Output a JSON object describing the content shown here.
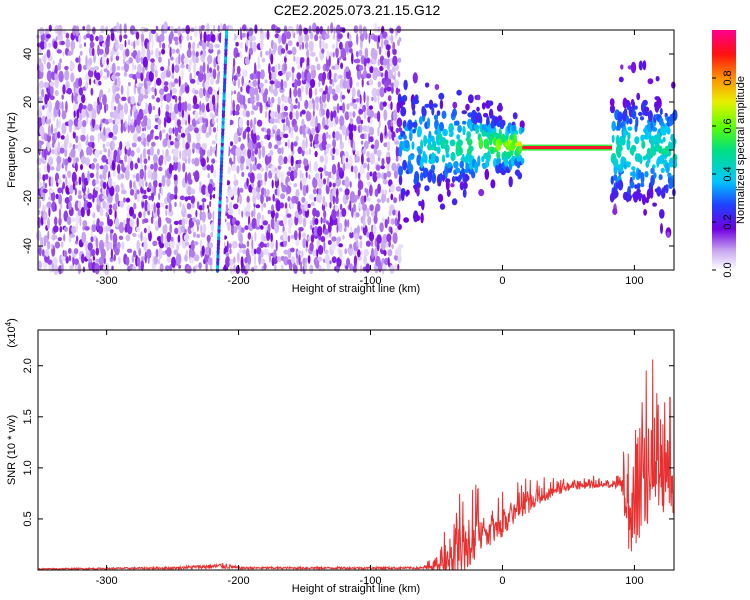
{
  "chart_data": [
    {
      "type": "heatmap",
      "title": "C2E2.2025.073.21.15.G12",
      "xlabel": "Height of straight line (km)",
      "ylabel": "Frequency (Hz)",
      "xlim": [
        -352,
        130
      ],
      "ylim": [
        -50,
        50
      ],
      "x_ticks": [
        -300,
        -200,
        -100,
        0,
        100
      ],
      "x_tick_labels": [
        "-300",
        "-200",
        "-100",
        "0",
        "100"
      ],
      "y_ticks": [
        -40,
        -20,
        0,
        20,
        40
      ],
      "y_tick_labels": [
        "-40",
        "-20",
        "0",
        "20",
        "40"
      ],
      "colorbar": {
        "label": "Normalized spectral amplitude",
        "range": [
          0,
          1
        ],
        "ticks": [
          0.0,
          0.2,
          0.4,
          0.6,
          0.8
        ],
        "tick_labels": [
          "0.0",
          "0.2",
          "0.4",
          "0.6",
          "0.8"
        ]
      },
      "regions": [
        {
          "name": "broadband noise",
          "x_range": [
            -352,
            -78
          ],
          "f_range": [
            -50,
            50
          ],
          "amplitude": 0.12
        },
        {
          "name": "diagonal trace",
          "x_range": [
            -216,
            -209
          ],
          "f_range": [
            -50,
            50
          ],
          "amplitude": 0.25
        },
        {
          "name": "transition",
          "x_range": [
            -78,
            15
          ],
          "f_center": 2,
          "amplitude": 0.4
        },
        {
          "name": "signal tone",
          "x_range": [
            15,
            83
          ],
          "f_center": 1,
          "amplitude": 0.92
        },
        {
          "name": "post-signal",
          "x_range": [
            83,
            130
          ],
          "f_center": 0,
          "amplitude": 0.3
        }
      ]
    },
    {
      "type": "line",
      "xlabel": "Height of straight line (km)",
      "ylabel": "SNR (10 * v/v)",
      "exponent_label": "(x10",
      "exponent_power": "4",
      "exponent_close": ")",
      "xlim": [
        -352,
        130
      ],
      "ylim": [
        0,
        2.35
      ],
      "x_ticks": [
        -300,
        -200,
        -100,
        0,
        100
      ],
      "x_tick_labels": [
        "-300",
        "-200",
        "-100",
        "0",
        "100"
      ],
      "y_ticks": [
        0.5,
        1.0,
        1.5,
        2.0
      ],
      "y_tick_labels": [
        "0.5",
        "1.0",
        "1.5",
        "2.0"
      ],
      "series": [
        {
          "name": "SNR",
          "color": "#e83030",
          "x": [
            -352,
            -300,
            -250,
            -210,
            -200,
            -150,
            -100,
            -60,
            -50,
            -40,
            -30,
            -20,
            -10,
            0,
            10,
            20,
            30,
            40,
            50,
            60,
            70,
            80,
            90,
            94,
            100,
            110,
            120,
            130
          ],
          "y": [
            0.01,
            0.015,
            0.02,
            0.04,
            0.02,
            0.02,
            0.02,
            0.02,
            0.06,
            0.2,
            0.32,
            0.42,
            0.5,
            0.56,
            0.63,
            0.7,
            0.76,
            0.8,
            0.83,
            0.84,
            0.85,
            0.85,
            0.86,
            0.7,
            0.85,
            1.05,
            1.1,
            1.0
          ],
          "spread": [
            0.005,
            0.008,
            0.01,
            0.03,
            0.01,
            0.01,
            0.01,
            0.01,
            0.15,
            0.45,
            0.6,
            0.5,
            0.45,
            0.4,
            0.3,
            0.25,
            0.18,
            0.12,
            0.1,
            0.08,
            0.08,
            0.08,
            0.1,
            0.9,
            1.2,
            1.1,
            1.0,
            0.9
          ]
        }
      ]
    }
  ]
}
